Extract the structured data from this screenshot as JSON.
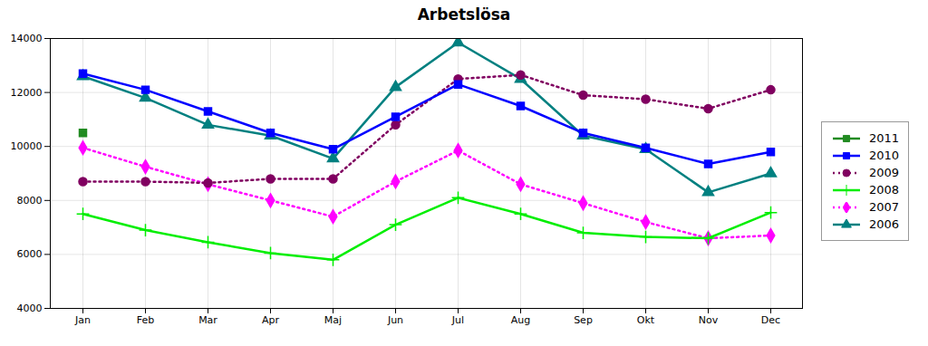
{
  "chart_data": {
    "type": "line",
    "title": "Arbetslösa",
    "categories": [
      "Jan",
      "Feb",
      "Mar",
      "Apr",
      "Maj",
      "Jun",
      "Jul",
      "Aug",
      "Sep",
      "Okt",
      "Nov",
      "Dec"
    ],
    "series": [
      {
        "name": "2011",
        "color": "#228B22",
        "marker": "square",
        "line_style": "solid",
        "values": [
          10500,
          null,
          null,
          null,
          null,
          null,
          null,
          null,
          null,
          null,
          null,
          null
        ]
      },
      {
        "name": "2010",
        "color": "#0000FF",
        "marker": "square",
        "line_style": "solid",
        "values": [
          12700,
          12100,
          11300,
          10500,
          9900,
          11100,
          12300,
          11500,
          10500,
          9950,
          9350,
          9800
        ]
      },
      {
        "name": "2009",
        "color": "#800060",
        "marker": "circle",
        "line_style": "dotted",
        "values": [
          8700,
          8700,
          8650,
          8800,
          8800,
          10800,
          12500,
          12650,
          11900,
          11750,
          11400,
          12100
        ]
      },
      {
        "name": "2008",
        "color": "#00EE00",
        "marker": "plus",
        "line_style": "solid",
        "values": [
          7500,
          6900,
          6450,
          6050,
          5800,
          7100,
          8100,
          7500,
          6800,
          6650,
          6600,
          7550
        ]
      },
      {
        "name": "2007",
        "color": "#FF00FF",
        "marker": "diamond",
        "line_style": "dotted",
        "values": [
          9950,
          9250,
          8600,
          8000,
          7400,
          8700,
          9850,
          8600,
          7900,
          7200,
          6600,
          6700
        ]
      },
      {
        "name": "2006",
        "color": "#008080",
        "marker": "triangle",
        "line_style": "solid",
        "values": [
          12600,
          11800,
          10800,
          10400,
          9550,
          12200,
          13850,
          12500,
          10400,
          9900,
          8300,
          9000
        ]
      }
    ],
    "ylim": [
      4000,
      14000
    ],
    "yticks": [
      4000,
      6000,
      8000,
      10000,
      12000,
      14000
    ],
    "grid": true,
    "legend": "right"
  }
}
